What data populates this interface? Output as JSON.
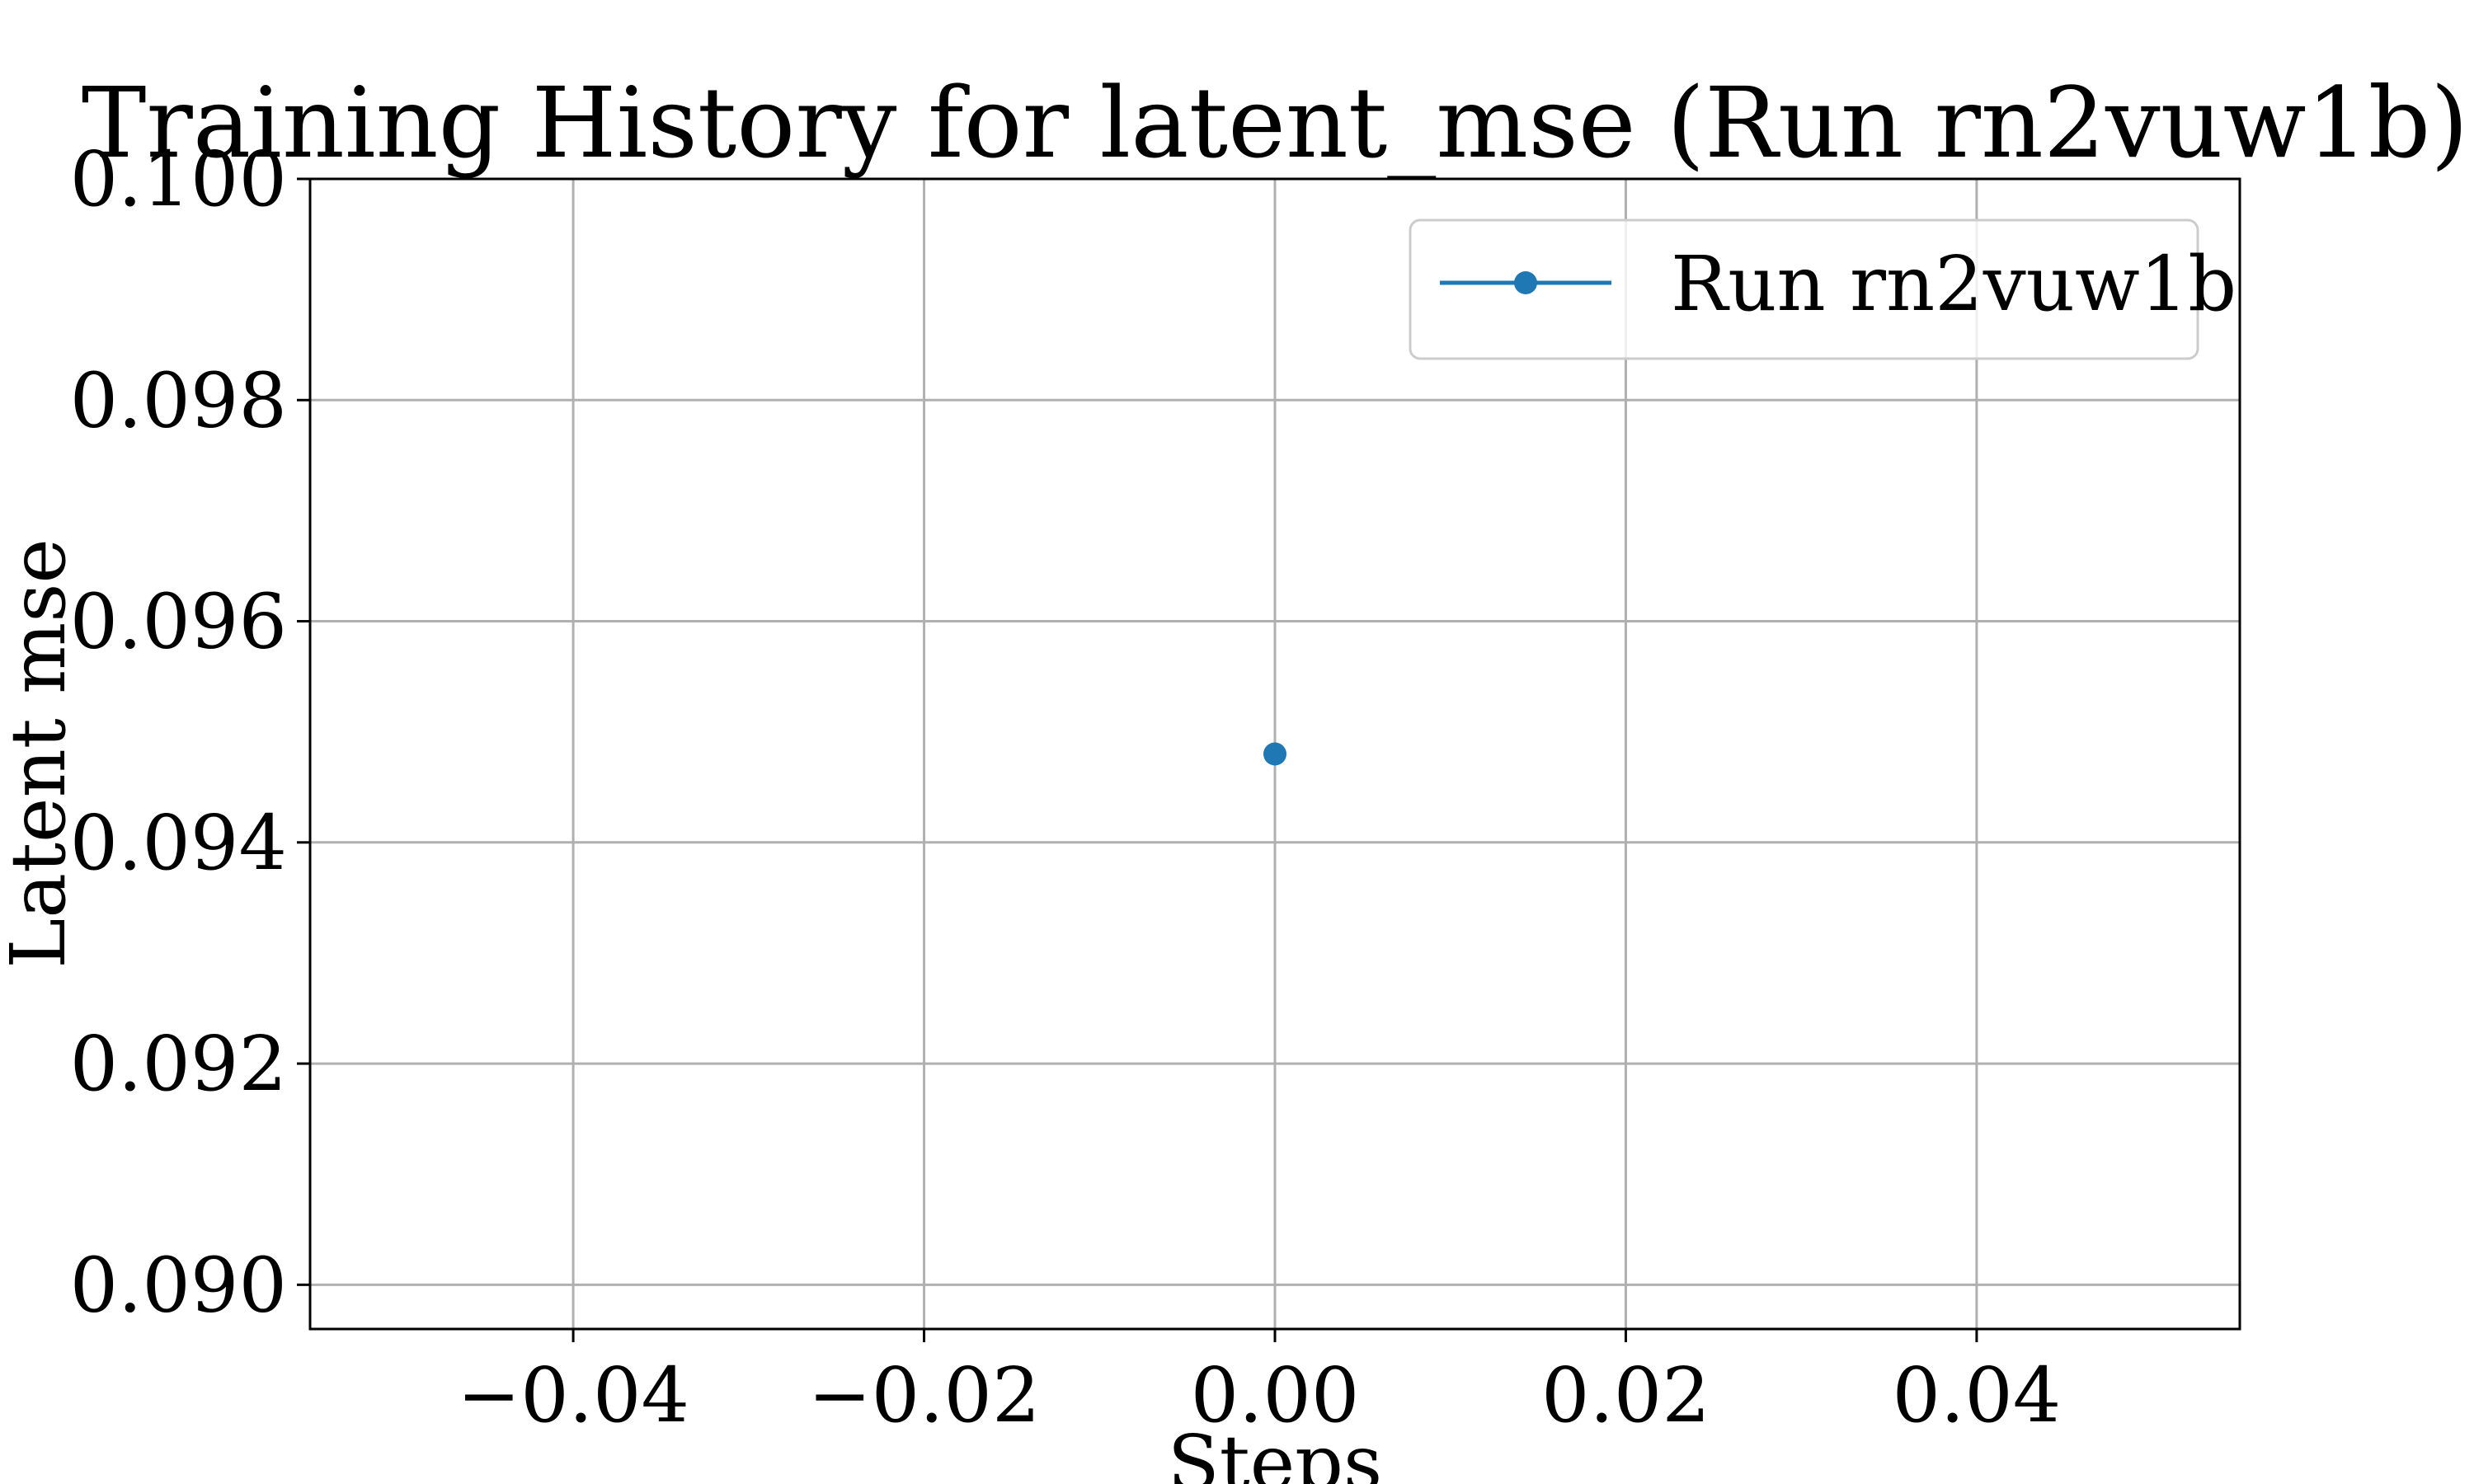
{
  "chart_data": {
    "type": "line",
    "title": "Training History for latent_mse (Run rn2vuw1b)",
    "xlabel": "Steps",
    "ylabel": "Latent mse",
    "xlim": [
      -0.055,
      0.055
    ],
    "ylim": [
      0.0896,
      0.1
    ],
    "x_ticks": [
      -0.04,
      -0.02,
      0.0,
      0.02,
      0.04
    ],
    "x_tick_labels": [
      "−0.04",
      "−0.02",
      "0.00",
      "0.02",
      "0.04"
    ],
    "y_ticks": [
      0.09,
      0.092,
      0.094,
      0.096,
      0.098,
      0.1
    ],
    "y_tick_labels": [
      "0.090",
      "0.092",
      "0.094",
      "0.096",
      "0.098",
      "0.100"
    ],
    "grid": true,
    "legend_position": "top-right",
    "series": [
      {
        "name": "Run rn2vuw1b",
        "color": "#1f77b4",
        "marker": "circle",
        "points": [
          {
            "x": 0,
            "y": 0.0948
          }
        ]
      }
    ]
  }
}
